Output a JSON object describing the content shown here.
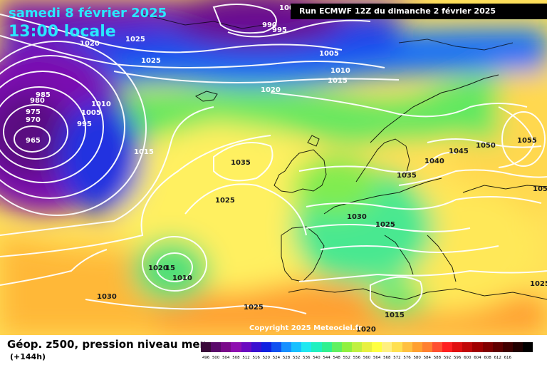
{
  "header": {
    "date": "samedi 8 février 2025",
    "time": "13:00 locale",
    "run": "Run ECMWF 12Z du dimanche 2 février 2025"
  },
  "copyright": "Copyright 2025 Meteociel.fr",
  "legend": {
    "title": "Géop. z500, pression niveau mer",
    "subtitle": "(+144h)",
    "colors": [
      "#3a0a3a",
      "#5a0a6a",
      "#7a0a8a",
      "#8e0eb0",
      "#6a0ac0",
      "#3a10d0",
      "#1020e0",
      "#1050f0",
      "#1890ff",
      "#18c0ff",
      "#20e8f0",
      "#20f0c0",
      "#30f090",
      "#60f060",
      "#90f040",
      "#c0f040",
      "#e8f040",
      "#ffff40",
      "#fff080",
      "#ffe050",
      "#ffc040",
      "#ffa030",
      "#ff8030",
      "#ff5030",
      "#ff2020",
      "#e01010",
      "#c00808",
      "#a00000",
      "#800000",
      "#600000",
      "#400000",
      "#200000",
      "#000000"
    ],
    "values": [
      "496",
      "500",
      "504",
      "508",
      "512",
      "516",
      "520",
      "524",
      "528",
      "532",
      "536",
      "540",
      "544",
      "548",
      "552",
      "556",
      "560",
      "564",
      "568",
      "572",
      "576",
      "580",
      "584",
      "588",
      "592",
      "596",
      "600",
      "604",
      "608",
      "612",
      "616",
      "",
      ""
    ]
  },
  "isobar_labels": [
    {
      "text": "1020"
    },
    {
      "text": "1025"
    },
    {
      "text": "1025"
    },
    {
      "text": "990"
    },
    {
      "text": "995"
    },
    {
      "text": "1005"
    },
    {
      "text": "1010"
    },
    {
      "text": "1015"
    },
    {
      "text": "1020"
    },
    {
      "text": "985"
    },
    {
      "text": "980"
    },
    {
      "text": "975"
    },
    {
      "text": "970"
    },
    {
      "text": "965"
    },
    {
      "text": "1010"
    },
    {
      "text": "1005"
    },
    {
      "text": "995"
    },
    {
      "text": "1015"
    },
    {
      "text": "1035"
    },
    {
      "text": "1025"
    },
    {
      "text": "1020"
    },
    {
      "text": "15"
    },
    {
      "text": "1010"
    },
    {
      "text": "1030"
    },
    {
      "text": "1025"
    },
    {
      "text": "1030"
    },
    {
      "text": "1025"
    },
    {
      "text": "1035"
    },
    {
      "text": "1040"
    },
    {
      "text": "1045"
    },
    {
      "text": "1050"
    },
    {
      "text": "1055"
    },
    {
      "text": "105"
    },
    {
      "text": "1025"
    },
    {
      "text": "1015"
    },
    {
      "text": "1020"
    },
    {
      "text": "100"
    }
  ]
}
